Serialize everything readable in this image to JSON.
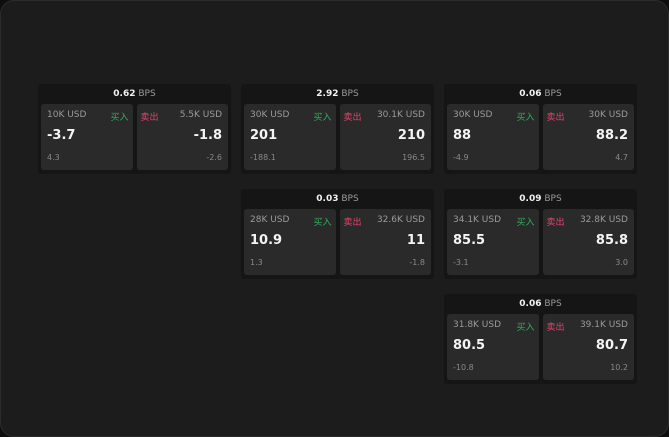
{
  "unit": "BPS",
  "buy_label": "买入",
  "sell_label": "卖出",
  "colors": {
    "buy": "#2fae5e",
    "sell": "#e0456e"
  },
  "panels": [
    {
      "spread": "0.62",
      "bid": {
        "size": "10K USD",
        "price": "-3.7",
        "change": "4.3"
      },
      "ask": {
        "size": "5.5K USD",
        "price": "-1.8",
        "change": "-2.6"
      }
    },
    {
      "spread": "2.92",
      "bid": {
        "size": "30K USD",
        "price": "201",
        "change": "-188.1"
      },
      "ask": {
        "size": "30.1K USD",
        "price": "210",
        "change": "196.5"
      }
    },
    {
      "spread": "0.06",
      "bid": {
        "size": "30K USD",
        "price": "88",
        "change": "-4.9"
      },
      "ask": {
        "size": "30K USD",
        "price": "88.2",
        "change": "4.7"
      }
    },
    {
      "spread": "0.03",
      "bid": {
        "size": "28K USD",
        "price": "10.9",
        "change": "1.3"
      },
      "ask": {
        "size": "32.6K USD",
        "price": "11",
        "change": "-1.8"
      }
    },
    {
      "spread": "0.09",
      "bid": {
        "size": "34.1K USD",
        "price": "85.5",
        "change": "-3.1"
      },
      "ask": {
        "size": "32.8K USD",
        "price": "85.8",
        "change": "3.0"
      }
    },
    {
      "spread": "0.06",
      "bid": {
        "size": "31.8K USD",
        "price": "80.5",
        "change": "-10.8"
      },
      "ask": {
        "size": "39.1K USD",
        "price": "80.7",
        "change": "10.2"
      }
    }
  ]
}
